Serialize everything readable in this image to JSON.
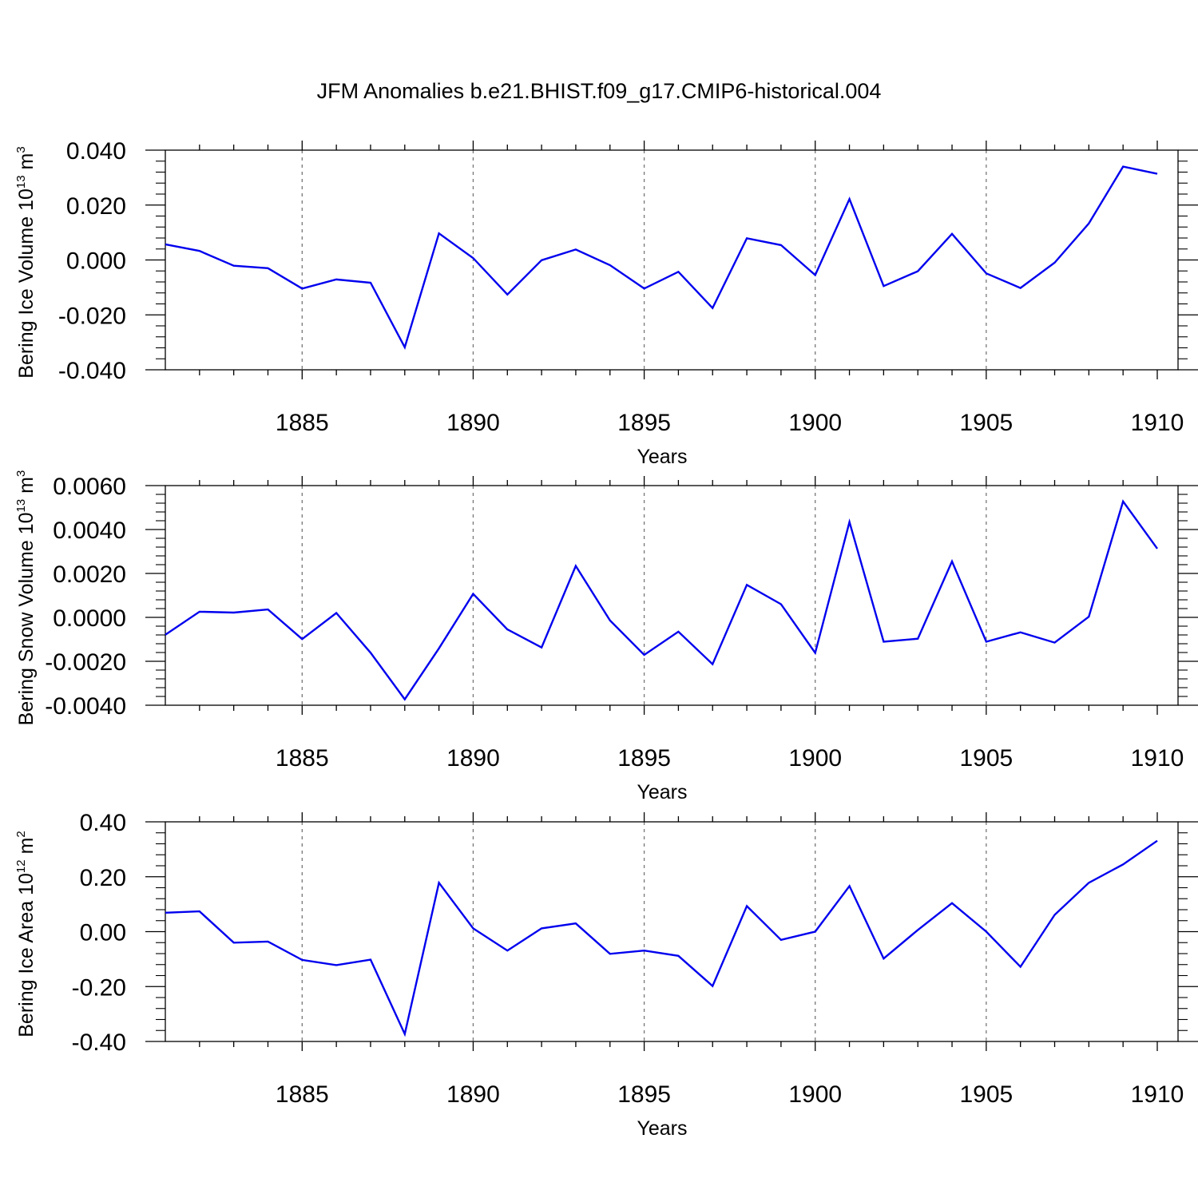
{
  "figure": {
    "title": "JFM Anomalies b.e21.BHIST.f09_g17.CMIP6-historical.004",
    "line_color": "#0000ee",
    "grid_color": "#777777"
  },
  "chart_data": [
    {
      "type": "line",
      "xlabel": "Years",
      "ylabel_main": "Bering Ice Volume 10",
      "ylabel_sup": "13",
      "ylabel_unit": " m",
      "ylabel_unit_sup": "3",
      "xlim": [
        1881,
        1910
      ],
      "ylim": [
        -0.04,
        0.04
      ],
      "x_ticks": [
        1885,
        1890,
        1895,
        1900,
        1905,
        1910
      ],
      "x_tick_labels": [
        "1885",
        "1890",
        "1895",
        "1900",
        "1905",
        "1910"
      ],
      "y_ticks": [
        -0.04,
        -0.02,
        0.0,
        0.02,
        0.04
      ],
      "y_tick_labels": [
        "-0.040",
        "-0.020",
        "0.000",
        "0.020",
        "0.040"
      ],
      "x": [
        1881,
        1882,
        1883,
        1884,
        1885,
        1886,
        1887,
        1888,
        1889,
        1890,
        1891,
        1892,
        1893,
        1894,
        1895,
        1896,
        1897,
        1898,
        1899,
        1900,
        1901,
        1902,
        1903,
        1904,
        1905,
        1906,
        1907,
        1908,
        1909,
        1910
      ],
      "values": [
        0.0057,
        0.0033,
        -0.0021,
        -0.003,
        -0.0104,
        -0.0071,
        -0.0083,
        -0.0318,
        0.0097,
        0.0007,
        -0.0126,
        -0.0001,
        0.0038,
        -0.0019,
        -0.0104,
        -0.0043,
        -0.0175,
        0.0079,
        0.0054,
        -0.0055,
        0.0222,
        -0.0095,
        -0.0041,
        0.0095,
        -0.0049,
        -0.0102,
        -0.001,
        0.0133,
        0.034,
        0.0314
      ]
    },
    {
      "type": "line",
      "xlabel": "Years",
      "ylabel_main": "Bering Snow Volume 10",
      "ylabel_sup": "13",
      "ylabel_unit": " m",
      "ylabel_unit_sup": "3",
      "xlim": [
        1881,
        1910
      ],
      "ylim": [
        -0.004,
        0.006
      ],
      "x_ticks": [
        1885,
        1890,
        1895,
        1900,
        1905,
        1910
      ],
      "x_tick_labels": [
        "1885",
        "1890",
        "1895",
        "1900",
        "1905",
        "1910"
      ],
      "y_ticks": [
        -0.004,
        -0.002,
        0.0,
        0.002,
        0.004,
        0.006
      ],
      "y_tick_labels": [
        "-0.0040",
        "-0.0020",
        "0.0000",
        "0.0020",
        "0.0040",
        "0.0060"
      ],
      "x": [
        1881,
        1882,
        1883,
        1884,
        1885,
        1886,
        1887,
        1888,
        1889,
        1890,
        1891,
        1892,
        1893,
        1894,
        1895,
        1896,
        1897,
        1898,
        1899,
        1900,
        1901,
        1902,
        1903,
        1904,
        1905,
        1906,
        1907,
        1908,
        1909,
        1910
      ],
      "values": [
        -0.00079,
        0.00026,
        0.00022,
        0.00036,
        -0.00099,
        0.0002,
        -0.00161,
        -0.00373,
        -0.00141,
        0.00107,
        -0.00055,
        -0.00137,
        0.00234,
        -0.00014,
        -0.00171,
        -0.00065,
        -0.00213,
        0.00148,
        0.0006,
        -0.00162,
        0.00434,
        -0.00111,
        -0.00097,
        0.00255,
        -0.00111,
        -0.00068,
        -0.00115,
        3e-05,
        0.00528,
        0.00313
      ]
    },
    {
      "type": "line",
      "xlabel": "Years",
      "ylabel_main": "Bering Ice Area 10",
      "ylabel_sup": "12",
      "ylabel_unit": " m",
      "ylabel_unit_sup": "2",
      "xlim": [
        1881,
        1910
      ],
      "ylim": [
        -0.4,
        0.4
      ],
      "x_ticks": [
        1885,
        1890,
        1895,
        1900,
        1905,
        1910
      ],
      "x_tick_labels": [
        "1885",
        "1890",
        "1895",
        "1900",
        "1905",
        "1910"
      ],
      "y_ticks": [
        -0.4,
        -0.2,
        0.0,
        0.2,
        0.4
      ],
      "y_tick_labels": [
        "-0.40",
        "-0.20",
        "0.00",
        "0.20",
        "0.40"
      ],
      "x": [
        1881,
        1882,
        1883,
        1884,
        1885,
        1886,
        1887,
        1888,
        1889,
        1890,
        1891,
        1892,
        1893,
        1894,
        1895,
        1896,
        1897,
        1898,
        1899,
        1900,
        1901,
        1902,
        1903,
        1904,
        1905,
        1906,
        1907,
        1908,
        1909,
        1910
      ],
      "values": [
        0.069,
        0.074,
        -0.04,
        -0.036,
        -0.103,
        -0.122,
        -0.102,
        -0.373,
        0.178,
        0.012,
        -0.069,
        0.012,
        0.03,
        -0.081,
        -0.069,
        -0.088,
        -0.198,
        0.093,
        -0.03,
        0.0,
        0.166,
        -0.098,
        0.006,
        0.104,
        0.0,
        -0.128,
        0.061,
        0.178,
        0.245,
        0.331
      ]
    }
  ]
}
